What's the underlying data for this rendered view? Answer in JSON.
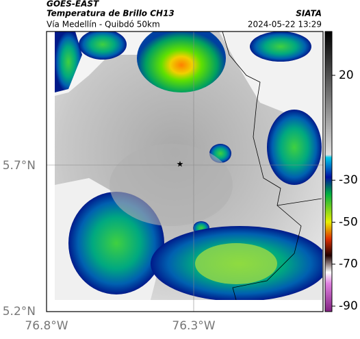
{
  "header": {
    "satellite": "GOES-EAST",
    "product": "Temperatura de Brillo CH13",
    "source": "SIATA",
    "route": "Vía Medellín - Quibdó 50km",
    "datetime": "2024-05-22 13:29"
  },
  "map": {
    "lat_labels": [
      "5.7°N",
      "5.2°N"
    ],
    "lon_labels": [
      "76.8°W",
      "76.3°W"
    ]
  },
  "colorbar": {
    "ticks": [
      20,
      -30,
      -50,
      -70,
      -90
    ]
  }
}
